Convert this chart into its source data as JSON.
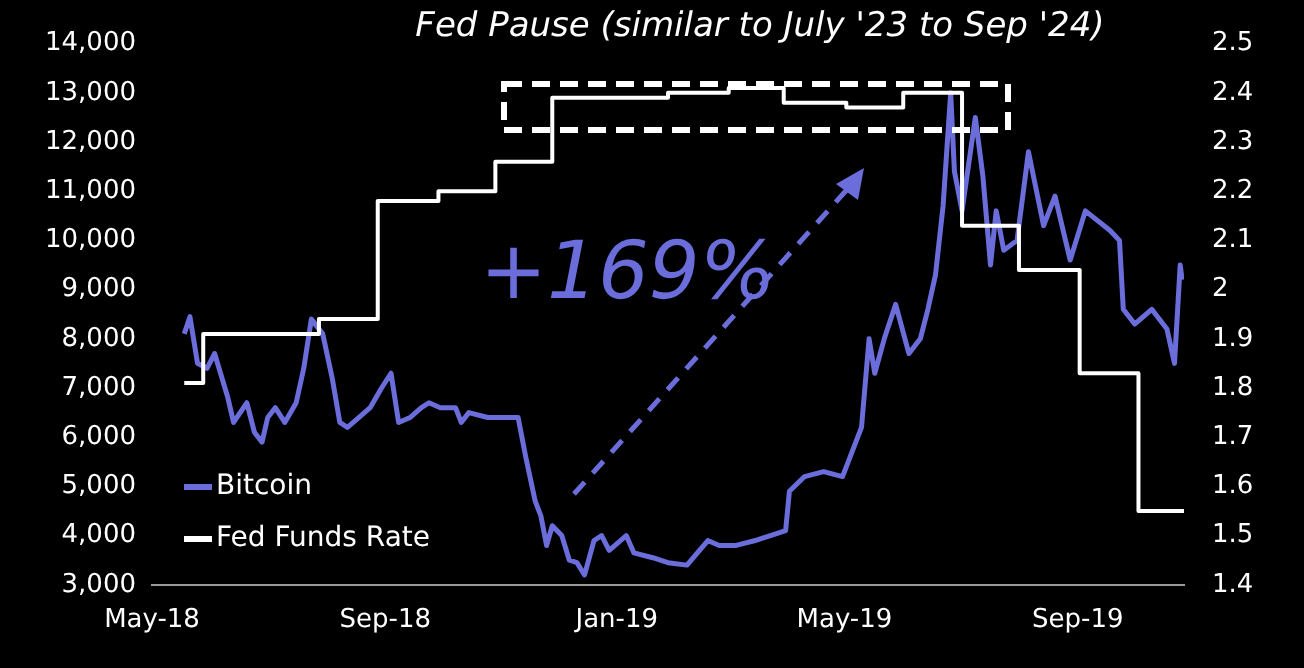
{
  "chart_data": {
    "type": "line",
    "title": "Fed Pause (similar to July '23 to Sep '24)",
    "annotations": [
      "+169%"
    ],
    "series": [
      {
        "name": "Bitcoin",
        "color": "#6b6ddb",
        "axis": "y",
        "x": [
          "2018-05-18",
          "2018-05-21",
          "2018-05-25",
          "2018-05-30",
          "2018-06-03",
          "2018-06-10",
          "2018-06-13",
          "2018-06-20",
          "2018-06-24",
          "2018-06-28",
          "2018-07-01",
          "2018-07-05",
          "2018-07-10",
          "2018-07-16",
          "2018-07-20",
          "2018-07-24",
          "2018-07-30",
          "2018-08-04",
          "2018-08-08",
          "2018-08-12",
          "2018-08-18",
          "2018-08-24",
          "2018-08-30",
          "2018-09-04",
          "2018-09-08",
          "2018-09-14",
          "2018-09-20",
          "2018-09-24",
          "2018-09-30",
          "2018-10-08",
          "2018-10-11",
          "2018-10-15",
          "2018-10-25",
          "2018-11-05",
          "2018-11-10",
          "2018-11-14",
          "2018-11-19",
          "2018-11-22",
          "2018-11-25",
          "2018-11-28",
          "2018-12-03",
          "2018-12-07",
          "2018-12-11",
          "2018-12-15",
          "2018-12-20",
          "2018-12-24",
          "2018-12-28",
          "2019-01-06",
          "2019-01-10",
          "2019-01-20",
          "2019-01-28",
          "2019-02-07",
          "2019-02-18",
          "2019-02-24",
          "2019-03-05",
          "2019-03-15",
          "2019-03-31",
          "2019-04-02",
          "2019-04-10",
          "2019-04-20",
          "2019-04-30",
          "2019-05-10",
          "2019-05-14",
          "2019-05-17",
          "2019-05-22",
          "2019-05-28",
          "2019-06-04",
          "2019-06-10",
          "2019-06-14",
          "2019-06-18",
          "2019-06-22",
          "2019-06-26",
          "2019-06-28",
          "2019-07-02",
          "2019-07-09",
          "2019-07-13",
          "2019-07-17",
          "2019-07-20",
          "2019-07-24",
          "2019-07-31",
          "2019-08-06",
          "2019-08-14",
          "2019-08-20",
          "2019-08-28",
          "2019-09-05",
          "2019-09-18",
          "2019-09-23",
          "2019-09-25",
          "2019-10-01",
          "2019-10-10",
          "2019-10-18",
          "2019-10-22",
          "2019-10-25",
          "2019-10-26"
        ],
        "values": [
          8100,
          8450,
          7500,
          7400,
          7700,
          6800,
          6300,
          6700,
          6100,
          5900,
          6400,
          6600,
          6300,
          6700,
          7400,
          8400,
          8100,
          7200,
          6300,
          6200,
          6400,
          6600,
          7000,
          7300,
          6300,
          6400,
          6600,
          6700,
          6600,
          6600,
          6300,
          6500,
          6400,
          6400,
          6400,
          5600,
          4700,
          4400,
          3800,
          4200,
          4000,
          3500,
          3450,
          3200,
          3900,
          4000,
          3700,
          4000,
          3650,
          3550,
          3450,
          3400,
          3900,
          3800,
          3800,
          3900,
          4100,
          4900,
          5200,
          5300,
          5200,
          6200,
          8000,
          7300,
          8000,
          8700,
          7700,
          8000,
          8600,
          9300,
          10700,
          13000,
          11400,
          10600,
          12500,
          11300,
          9500,
          10600,
          9800,
          10000,
          11800,
          10300,
          10900,
          9600,
          10600,
          10200,
          10000,
          8600,
          8300,
          8600,
          8200,
          7500,
          9500,
          9200
        ]
      },
      {
        "name": "Fed Funds Rate",
        "color": "#ffffff",
        "axis": "y2",
        "type": "step",
        "x": [
          "2018-05-18",
          "2018-05-28",
          "2018-07-28",
          "2018-08-28",
          "2018-09-29",
          "2018-10-29",
          "2018-11-28",
          "2019-01-28",
          "2019-03-01",
          "2019-03-30",
          "2019-05-02",
          "2019-06-01",
          "2019-07-02",
          "2019-08-01",
          "2019-09-02",
          "2019-10-03",
          "2019-10-27"
        ],
        "values": [
          1.81,
          1.91,
          1.94,
          2.18,
          2.2,
          2.26,
          2.39,
          2.4,
          2.41,
          2.38,
          2.37,
          2.4,
          2.13,
          2.04,
          1.83,
          1.55,
          1.55
        ]
      }
    ],
    "xlim": [
      "2018-05-01",
      "2019-10-27"
    ],
    "xticks": [
      {
        "value": "2018-05-01",
        "label": "May-18"
      },
      {
        "value": "2018-09-01",
        "label": "Sep-18"
      },
      {
        "value": "2019-01-01",
        "label": "Jan-19"
      },
      {
        "value": "2019-05-01",
        "label": "May-19"
      },
      {
        "value": "2019-09-01",
        "label": "Sep-19"
      }
    ],
    "ylim": [
      3000,
      14000
    ],
    "yticks": [
      {
        "value": 3000,
        "label": "3,000"
      },
      {
        "value": 4000,
        "label": "4,000"
      },
      {
        "value": 5000,
        "label": "5,000"
      },
      {
        "value": 6000,
        "label": "6,000"
      },
      {
        "value": 7000,
        "label": "7,000"
      },
      {
        "value": 8000,
        "label": "8,000"
      },
      {
        "value": 9000,
        "label": "9,000"
      },
      {
        "value": 10000,
        "label": "10,000"
      },
      {
        "value": 11000,
        "label": "11,000"
      },
      {
        "value": 12000,
        "label": "12,000"
      },
      {
        "value": 13000,
        "label": "13,000"
      },
      {
        "value": 14000,
        "label": "14,000"
      }
    ],
    "y2lim": [
      1.4,
      2.5
    ],
    "y2ticks": [
      1.4,
      1.5,
      1.6,
      1.7,
      1.8,
      1.9,
      2,
      2.1,
      2.2,
      2.3,
      2.4,
      2.5
    ],
    "grid": false,
    "legend": "bottom left",
    "marker": "none",
    "line_style": "solid"
  }
}
